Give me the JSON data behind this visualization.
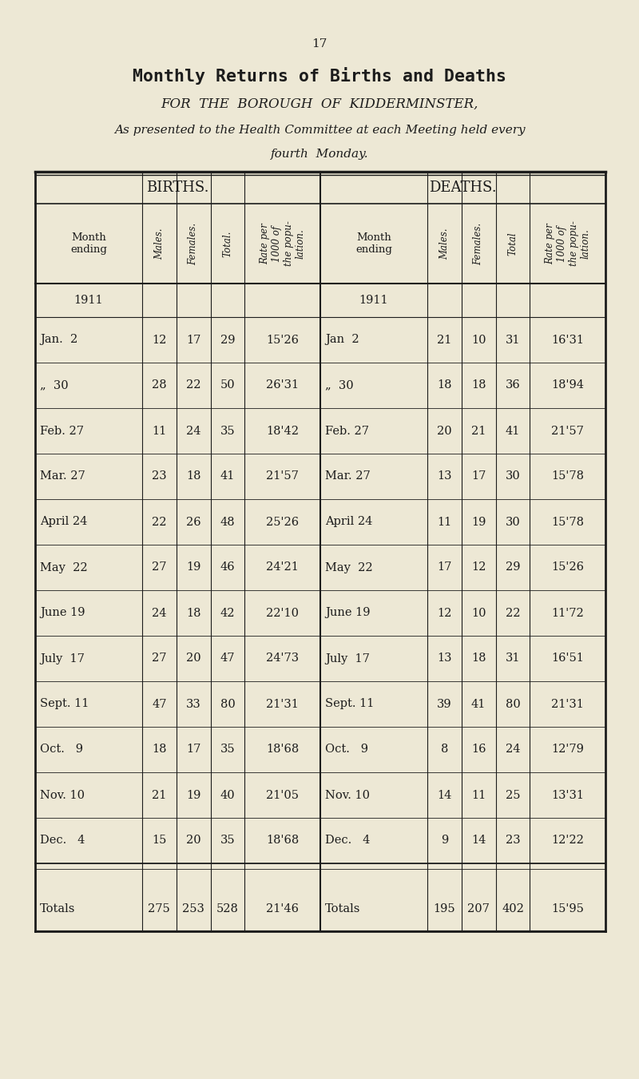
{
  "page_number": "17",
  "title": "Monthly Returns of Births and Deaths",
  "subtitle1": "FOR  THE  BOROUGH  OF  KIDDERMINSTER,",
  "subtitle2": "As presented to the Health Committee at each Meeting held every",
  "subtitle3": "fourth  Monday.",
  "bg_color": "#ede8d5",
  "births_header": "BIRTHS.",
  "deaths_header": "DEATHS.",
  "col_headers_births": [
    "Month\nending",
    "Males.",
    "Females.",
    "Total.",
    "Rate per\n1000 of\nthe popu-\nlation."
  ],
  "col_headers_deaths": [
    "Month\nending",
    "Males.",
    "Females.",
    "Total",
    "Rate per\n1000 of\nthe popu-\nlation."
  ],
  "year_label": "1911",
  "births_data": [
    [
      "Jan.  2",
      "12",
      "17",
      "29",
      "15'26"
    ],
    [
      "„  30",
      "28",
      "22",
      "50",
      "26'31"
    ],
    [
      "Feb. 27",
      "11",
      "24",
      "35",
      "18'42"
    ],
    [
      "Mar. 27",
      "23",
      "18",
      "41",
      "21'57"
    ],
    [
      "April 24",
      "22",
      "26",
      "48",
      "25'26"
    ],
    [
      "May  22",
      "27",
      "19",
      "46",
      "24'21"
    ],
    [
      "June 19",
      "24",
      "18",
      "42",
      "22'10"
    ],
    [
      "July  17",
      "27",
      "20",
      "47",
      "24'73"
    ],
    [
      "Sept. 11",
      "47",
      "33",
      "80",
      "21'31"
    ],
    [
      "Oct.   9",
      "18",
      "17",
      "35",
      "18'68"
    ],
    [
      "Nov. 10",
      "21",
      "19",
      "40",
      "21'05"
    ],
    [
      "Dec.   4",
      "15",
      "20",
      "35",
      "18'68"
    ]
  ],
  "deaths_data": [
    [
      "Jan  2",
      "21",
      "10",
      "31",
      "16'31"
    ],
    [
      "„  30",
      "18",
      "18",
      "36",
      "18'94"
    ],
    [
      "Feb. 27",
      "20",
      "21",
      "41",
      "21'57"
    ],
    [
      "Mar. 27",
      "13",
      "17",
      "30",
      "15'78"
    ],
    [
      "April 24",
      "11",
      "19",
      "30",
      "15'78"
    ],
    [
      "May  22",
      "17",
      "12",
      "29",
      "15'26"
    ],
    [
      "June 19",
      "12",
      "10",
      "22",
      "11'72"
    ],
    [
      "July  17",
      "13",
      "18",
      "31",
      "16'51"
    ],
    [
      "Sept. 11",
      "39",
      "41",
      "80",
      "21'31"
    ],
    [
      "Oct.   9",
      "8",
      "16",
      "24",
      "12'79"
    ],
    [
      "Nov. 10",
      "14",
      "11",
      "25",
      "13'31"
    ],
    [
      "Dec.   4",
      "9",
      "14",
      "23",
      "12'22"
    ]
  ],
  "totals_births": [
    "Totals",
    "275",
    "253",
    "528",
    "21'46"
  ],
  "totals_deaths": [
    "Totals",
    "195",
    "207",
    "402",
    "15'95"
  ]
}
